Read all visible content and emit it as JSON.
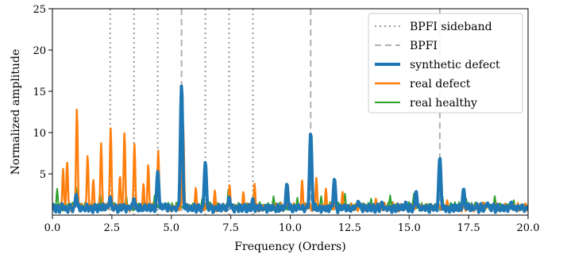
{
  "chart_data": {
    "type": "line",
    "title": "",
    "xlabel": "Frequency (Orders)",
    "ylabel": "Normalized amplitude",
    "xlim": [
      0.0,
      20.0
    ],
    "ylim": [
      0,
      25
    ],
    "x_ticks": [
      0.0,
      2.5,
      5.0,
      7.5,
      10.0,
      12.5,
      15.0,
      17.5,
      20.0
    ],
    "x_tick_labels": [
      "0.0",
      "2.5",
      "5.0",
      "7.5",
      "10.0",
      "12.5",
      "15.0",
      "17.5",
      "20.0"
    ],
    "y_ticks": [
      5,
      10,
      15,
      20,
      25
    ],
    "y_tick_labels": [
      "5",
      "10",
      "15",
      "20",
      "25"
    ],
    "grid": false,
    "legend_position": "top-right",
    "reference_lines": [
      {
        "name": "BPFI sideband",
        "style": "dotted",
        "color": "#999999",
        "x": [
          2.43,
          3.43,
          4.43,
          6.43,
          7.43,
          8.43
        ]
      },
      {
        "name": "BPFI",
        "style": "dashed",
        "color": "#b0b0b0",
        "x": [
          5.43,
          10.86,
          16.29
        ]
      }
    ],
    "series": [
      {
        "name": "synthetic defect",
        "color": "#1f77b4",
        "width": 4,
        "baseline": 0.6,
        "peaks": [
          [
            5.43,
            15.7
          ],
          [
            10.86,
            10.0
          ],
          [
            16.29,
            7.0
          ],
          [
            6.43,
            6.4
          ],
          [
            11.86,
            4.4
          ],
          [
            4.43,
            5.3
          ],
          [
            17.29,
            3.2
          ],
          [
            15.29,
            2.9
          ],
          [
            9.86,
            3.8
          ],
          [
            1.0,
            2.5
          ],
          [
            2.43,
            2.2
          ],
          [
            3.43,
            2.0
          ],
          [
            7.43,
            2.2
          ],
          [
            8.43,
            2.0
          ],
          [
            12.86,
            1.7
          ],
          [
            13.86,
            1.6
          ],
          [
            14.86,
            1.6
          ],
          [
            18.29,
            1.5
          ],
          [
            19.29,
            1.6
          ]
        ]
      },
      {
        "name": "real defect",
        "color": "#ff7f0e",
        "width": 2.5,
        "baseline": 0.7,
        "peaks": [
          [
            1.03,
            12.9
          ],
          [
            2.45,
            10.5
          ],
          [
            3.03,
            10.0
          ],
          [
            3.45,
            8.6
          ],
          [
            5.5,
            10.9
          ],
          [
            4.45,
            7.8
          ],
          [
            1.48,
            7.2
          ],
          [
            2.05,
            8.7
          ],
          [
            4.03,
            6.1
          ],
          [
            0.45,
            5.6
          ],
          [
            0.62,
            6.4
          ],
          [
            1.72,
            4.3
          ],
          [
            2.84,
            4.8
          ],
          [
            3.83,
            3.8
          ],
          [
            6.03,
            3.3
          ],
          [
            6.83,
            3.0
          ],
          [
            7.45,
            3.6
          ],
          [
            8.03,
            2.8
          ],
          [
            8.5,
            3.8
          ],
          [
            9.9,
            3.6
          ],
          [
            10.5,
            4.2
          ],
          [
            11.1,
            4.5
          ],
          [
            11.5,
            3.2
          ],
          [
            12.2,
            2.8
          ],
          [
            13.6,
            2.0
          ],
          [
            15.3,
            2.0
          ],
          [
            16.6,
            1.8
          ],
          [
            18.1,
            1.5
          ]
        ]
      },
      {
        "name": "real healthy",
        "color": "#2ca02c",
        "width": 2,
        "baseline": 0.8,
        "peaks": [
          [
            0.2,
            3.2
          ],
          [
            1.0,
            3.4
          ],
          [
            2.0,
            2.8
          ],
          [
            3.1,
            2.5
          ],
          [
            4.3,
            2.4
          ],
          [
            6.3,
            2.0
          ],
          [
            7.4,
            3.1
          ],
          [
            9.3,
            2.3
          ],
          [
            10.3,
            2.1
          ],
          [
            11.3,
            2.3
          ],
          [
            12.3,
            2.6
          ],
          [
            13.4,
            2.0
          ],
          [
            14.2,
            2.4
          ],
          [
            15.2,
            2.6
          ],
          [
            16.4,
            2.3
          ],
          [
            17.4,
            2.0
          ],
          [
            18.6,
            2.3
          ],
          [
            19.4,
            1.8
          ]
        ]
      }
    ]
  }
}
